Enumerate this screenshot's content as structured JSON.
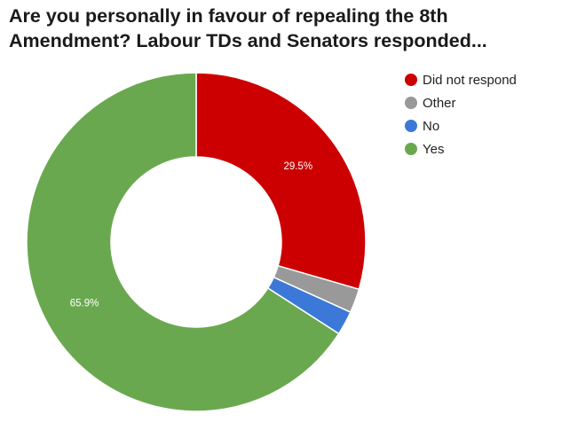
{
  "chart_data": {
    "type": "pie",
    "title": "Are you personally in favour of repealing the 8th Amendment? Labour TDs and Senators responded...",
    "donut": true,
    "start_angle_deg": 0,
    "legend_position": "right",
    "slices": [
      {
        "label": "Did not respond",
        "value": 29.5,
        "display": "29.5%",
        "color": "#cc0000"
      },
      {
        "label": "Other",
        "value": 2.3,
        "display": "",
        "color": "#999999"
      },
      {
        "label": "No",
        "value": 2.3,
        "display": "",
        "color": "#3c78d8"
      },
      {
        "label": "Yes",
        "value": 65.9,
        "display": "65.9%",
        "color": "#6aa84f"
      }
    ]
  }
}
